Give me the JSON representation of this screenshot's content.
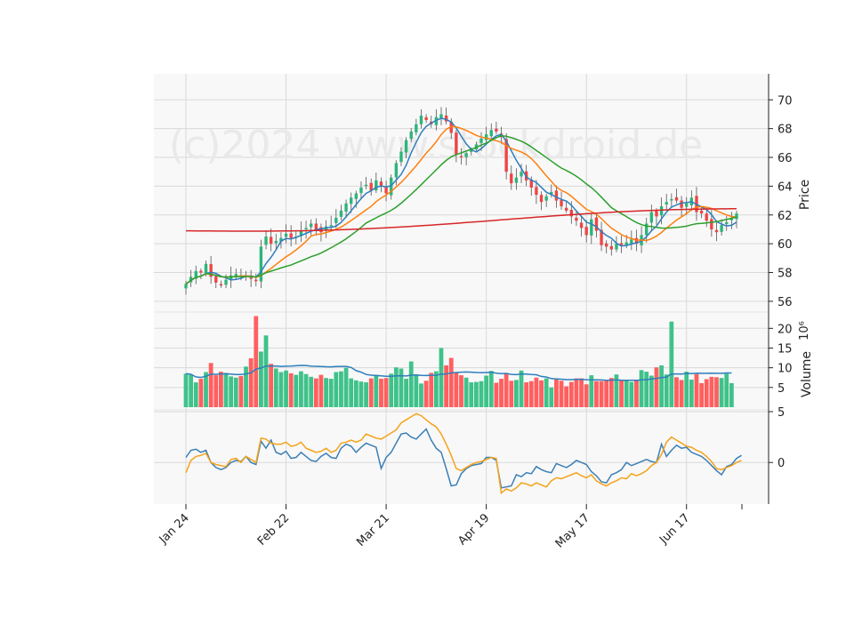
{
  "watermark": "(c)2024 www.stockdroid.de",
  "chart_data": [
    {
      "type": "candlestick",
      "panel": "price",
      "ylabel": "Price",
      "ylim": [
        55.5,
        71.5
      ],
      "y_ticks": [
        56,
        58,
        60,
        62,
        64,
        66,
        68,
        70
      ],
      "x_ticks": [
        "Jan 24",
        "Feb 22",
        "Mar 21",
        "Apr 19",
        "May 17",
        "Jun 17"
      ],
      "grid": true,
      "closes": [
        57.2,
        57.7,
        58.1,
        58.0,
        58.6,
        57.7,
        57.3,
        57.1,
        57.5,
        57.8,
        57.9,
        57.7,
        57.8,
        57.6,
        57.4,
        59.8,
        60.5,
        60.0,
        60.2,
        60.4,
        60.7,
        60.4,
        60.5,
        60.9,
        61.1,
        61.4,
        61.0,
        60.8,
        61.2,
        61.3,
        61.8,
        62.3,
        62.8,
        63.2,
        63.5,
        63.9,
        64.1,
        63.7,
        64.4,
        64.0,
        63.5,
        64.6,
        65.6,
        66.4,
        67.2,
        67.8,
        68.3,
        68.9,
        68.6,
        68.3,
        68.8,
        69.0,
        68.5,
        67.7,
        66.2,
        66.0,
        66.3,
        66.5,
        66.9,
        67.3,
        67.6,
        67.9,
        67.8,
        67.4,
        65.0,
        64.2,
        64.6,
        65.0,
        64.4,
        63.9,
        63.4,
        62.9,
        63.3,
        63.6,
        63.0,
        62.6,
        62.3,
        61.9,
        61.6,
        61.1,
        60.6,
        61.7,
        60.9,
        59.9,
        59.8,
        59.6,
        60.0,
        59.9,
        60.1,
        60.3,
        60.0,
        60.6,
        61.4,
        62.2,
        61.9,
        62.6,
        62.9,
        63.1,
        63.0,
        62.5,
        62.8,
        63.2,
        62.2,
        62.1,
        61.6,
        61.0,
        60.8,
        61.3,
        61.5,
        61.8,
        62.1
      ]
    },
    {
      "type": "bar",
      "panel": "volume",
      "ylabel": "Volume",
      "ylabel_exponent": "10⁶",
      "ylim": [
        0,
        23
      ],
      "y_ticks": [
        5,
        10,
        15,
        20
      ],
      "values": [
        8.5,
        8.2,
        6.3,
        7.2,
        8.9,
        11.2,
        8.1,
        9.0,
        8.7,
        7.8,
        7.5,
        7.9,
        10.3,
        12.4,
        23.1,
        14.1,
        18.2,
        11.0,
        9.8,
        8.9,
        9.3,
        8.6,
        8.2,
        9.1,
        8.4,
        7.7,
        7.3,
        8.2,
        7.4,
        7.2,
        8.9,
        9.1,
        10.0,
        7.3,
        6.8,
        6.5,
        6.3,
        7.3,
        8.2,
        7.2,
        7.4,
        8.5,
        10.1,
        9.8,
        7.2,
        11.6,
        8.3,
        6.0,
        6.7,
        8.7,
        9.1,
        15.0,
        10.6,
        12.5,
        8.9,
        8.1,
        7.5,
        6.3,
        6.4,
        6.6,
        8.0,
        9.2,
        6.2,
        7.2,
        8.6,
        6.7,
        6.9,
        9.3,
        6.3,
        6.6,
        7.5,
        6.8,
        7.3,
        5.0,
        7.0,
        6.7,
        5.3,
        6.4,
        7.3,
        7.3,
        5.8,
        8.1,
        6.6,
        6.6,
        6.7,
        7.4,
        8.3,
        7.0,
        6.7,
        6.4,
        7.0,
        9.4,
        9.0,
        8.0,
        10.1,
        10.6,
        8.3,
        21.7,
        7.6,
        6.9,
        9.0,
        7.0,
        8.4,
        6.1,
        7.1,
        7.7,
        7.6,
        7.4,
        8.5,
        6.1
      ]
    },
    {
      "type": "line",
      "panel": "oscillator",
      "ylim": [
        -4,
        5
      ],
      "y_ticks": [
        0,
        5
      ],
      "series": [
        {
          "color": "#3b7fb6",
          "values": [
            0.5,
            1.2,
            1.3,
            1.0,
            1.2,
            0.0,
            -0.5,
            -0.7,
            -0.5,
            0.0,
            0.2,
            0.1,
            0.6,
            0.0,
            -0.2,
            2.1,
            1.4,
            2.2,
            1.0,
            0.8,
            1.1,
            0.4,
            0.5,
            1.0,
            0.6,
            0.2,
            0.1,
            0.6,
            0.9,
            0.5,
            0.4,
            1.4,
            1.8,
            1.6,
            1.0,
            1.5,
            1.9,
            1.7,
            1.5,
            -0.6,
            0.5,
            1.0,
            1.9,
            2.8,
            2.9,
            2.5,
            2.3,
            2.8,
            3.3,
            2.2,
            1.4,
            1.0,
            -0.6,
            -2.3,
            -2.2,
            -1.1,
            -0.6,
            -0.3,
            -0.2,
            -0.1,
            0.5,
            0.5,
            0.2,
            -2.5,
            -2.4,
            -2.3,
            -1.2,
            -1.4,
            -1.0,
            -1.1,
            -0.4,
            -0.7,
            -0.9,
            -1.0,
            -0.1,
            -0.3,
            -0.5,
            -0.2,
            0.2,
            0.0,
            -0.2,
            -0.9,
            -1.3,
            -1.9,
            -2.0,
            -1.2,
            -1.0,
            -0.7,
            0.0,
            -0.3,
            -0.1,
            0.1,
            0.3,
            0.1,
            0.0,
            1.8,
            0.6,
            1.2,
            1.7,
            1.4,
            1.5,
            1.0,
            0.8,
            0.6,
            0.2,
            -0.3,
            -0.8,
            -1.2,
            -0.4,
            -0.2,
            0.4,
            0.7
          ]
        },
        {
          "color": "#f5a21a",
          "values": [
            -1.0,
            0.2,
            0.6,
            0.7,
            0.9,
            0.0,
            -0.2,
            -0.3,
            -0.4,
            0.3,
            0.4,
            0.0,
            0.6,
            0.3,
            0.0,
            2.4,
            2.3,
            1.9,
            1.8,
            1.8,
            2.0,
            1.6,
            1.7,
            2.0,
            1.4,
            1.2,
            1.0,
            1.1,
            1.4,
            1.0,
            1.2,
            1.9,
            2.0,
            2.2,
            2.0,
            2.2,
            2.8,
            2.6,
            2.4,
            2.3,
            2.6,
            2.9,
            3.2,
            3.9,
            4.2,
            4.5,
            4.8,
            4.6,
            4.2,
            3.8,
            3.5,
            2.8,
            1.8,
            0.7,
            -0.6,
            -0.8,
            -0.5,
            -0.2,
            0.0,
            0.1,
            0.3,
            0.5,
            0.4,
            -3.0,
            -2.6,
            -2.8,
            -2.5,
            -2.0,
            -2.1,
            -2.3,
            -2.0,
            -2.2,
            -2.4,
            -1.8,
            -1.5,
            -1.6,
            -1.4,
            -1.2,
            -1.0,
            -1.3,
            -1.5,
            -1.2,
            -1.8,
            -2.1,
            -2.3,
            -2.0,
            -1.8,
            -1.5,
            -1.6,
            -1.1,
            -1.3,
            -1.1,
            -0.8,
            -0.3,
            0.0,
            0.8,
            2.0,
            2.5,
            2.2,
            1.9,
            1.6,
            1.5,
            1.2,
            1.0,
            0.6,
            0.1,
            -0.6,
            -0.7,
            -0.5,
            -0.3,
            0.0,
            0.2
          ]
        }
      ]
    }
  ]
}
